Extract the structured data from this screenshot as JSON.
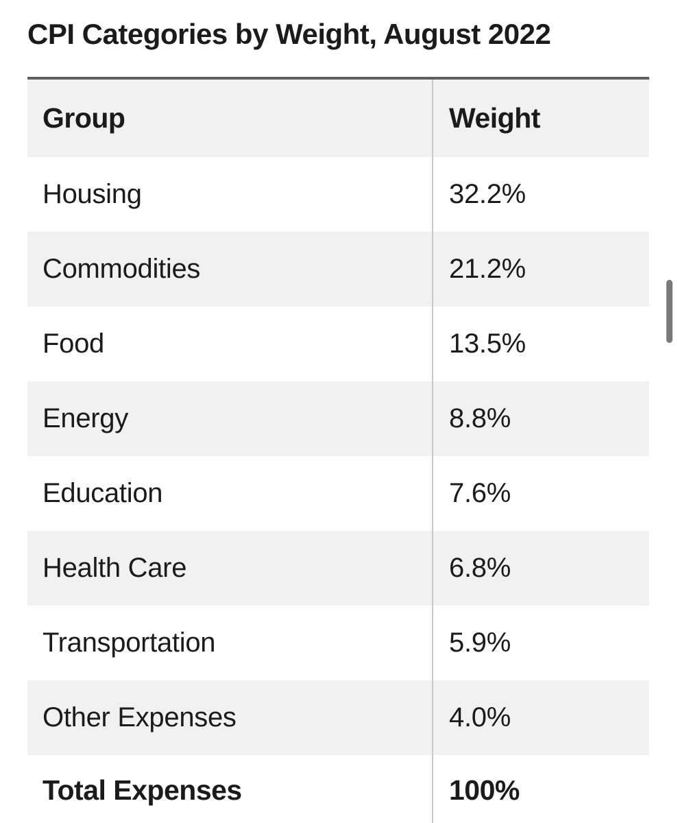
{
  "title": "CPI Categories by Weight, August 2022",
  "table": {
    "columns": {
      "group": "Group",
      "weight": "Weight"
    },
    "rows": [
      {
        "group": "Housing",
        "weight": "32.2%"
      },
      {
        "group": "Commodities",
        "weight": "21.2%"
      },
      {
        "group": "Food",
        "weight": "13.5%"
      },
      {
        "group": "Energy",
        "weight": "8.8%"
      },
      {
        "group": "Education",
        "weight": "7.6%"
      },
      {
        "group": "Health Care",
        "weight": "6.8%"
      },
      {
        "group": "Transportation",
        "weight": "5.9%"
      },
      {
        "group": "Other Expenses",
        "weight": "4.0%"
      }
    ],
    "total_row": {
      "group": "Total Expenses",
      "weight": "100%"
    }
  },
  "colors": {
    "text": "#1b1b1b",
    "stripe": "#f1f1f2",
    "top_rule": "#5e5e60",
    "column_divider": "#c8c8c8",
    "scrollbar_thumb": "#7a7a7a",
    "background": "#ffffff"
  },
  "chart_data": {
    "type": "table",
    "title": "CPI Categories by Weight, August 2022",
    "columns": [
      "Group",
      "Weight"
    ],
    "categories": [
      "Housing",
      "Commodities",
      "Food",
      "Energy",
      "Education",
      "Health Care",
      "Transportation",
      "Other Expenses"
    ],
    "values": [
      32.2,
      21.2,
      13.5,
      8.8,
      7.6,
      6.8,
      5.9,
      4.0
    ],
    "unit": "%",
    "total_label": "Total Expenses",
    "total_value": 100
  }
}
